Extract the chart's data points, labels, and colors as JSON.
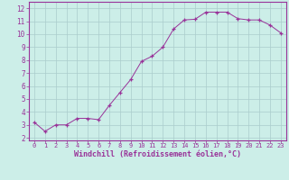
{
  "x": [
    0,
    1,
    2,
    3,
    4,
    5,
    6,
    7,
    8,
    9,
    10,
    11,
    12,
    13,
    14,
    15,
    16,
    17,
    18,
    19,
    20,
    21,
    22,
    23
  ],
  "y": [
    3.2,
    2.5,
    3.0,
    3.0,
    3.5,
    3.5,
    3.4,
    4.5,
    5.5,
    6.5,
    7.9,
    8.3,
    9.0,
    10.4,
    11.1,
    11.15,
    11.7,
    11.7,
    11.7,
    11.2,
    11.1,
    11.1,
    10.7,
    10.1
  ],
  "line_color": "#993399",
  "marker": "+",
  "marker_size": 3,
  "marker_color": "#993399",
  "bg_color": "#cceee8",
  "grid_color": "#aacccc",
  "xlabel": "Windchill (Refroidissement éolien,°C)",
  "xlabel_color": "#993399",
  "ylabel_ticks": [
    2,
    3,
    4,
    5,
    6,
    7,
    8,
    9,
    10,
    11,
    12
  ],
  "xlim": [
    -0.5,
    23.5
  ],
  "ylim": [
    1.8,
    12.5
  ],
  "xtick_labels": [
    "0",
    "1",
    "2",
    "3",
    "4",
    "5",
    "6",
    "7",
    "8",
    "9",
    "10",
    "11",
    "12",
    "13",
    "14",
    "15",
    "16",
    "17",
    "18",
    "19",
    "20",
    "21",
    "22",
    "23"
  ],
  "tick_color": "#993399",
  "axis_color": "#993399",
  "spine_color": "#993399"
}
